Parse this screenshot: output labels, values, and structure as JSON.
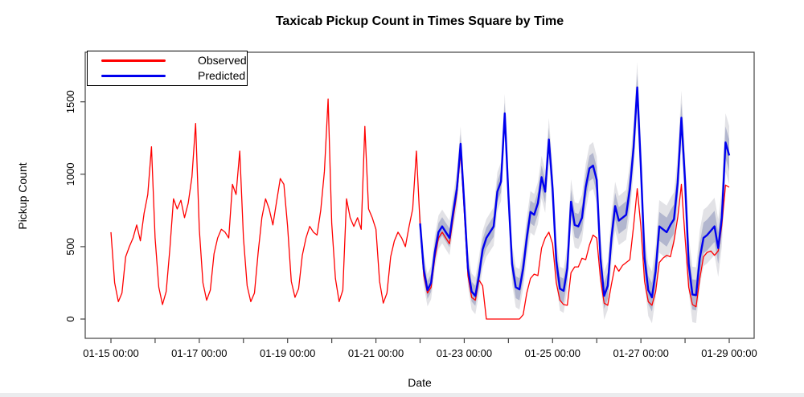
{
  "chart_data": {
    "type": "line",
    "title": "Taxicab Pickup Count in Times Square by Time",
    "xlabel": "Date",
    "ylabel": "Pickup Count",
    "x_start": "01-15 00:00",
    "x_end": "01-29 00:00",
    "step_hours": 2,
    "forecast_start": "01-22 00:00",
    "x_ticklabels": [
      "01-15 00:00",
      "01-17 00:00",
      "01-19 00:00",
      "01-21 00:00",
      "01-23 00:00",
      "01-25 00:00",
      "01-27 00:00",
      "01-29 00:00"
    ],
    "x_minor_tick_every_days": 1,
    "y_ticks": [
      0,
      500,
      1000,
      1500
    ],
    "ylim_displayed": [
      -130,
      1840
    ],
    "grid": false,
    "legend_position": "top-left",
    "series": [
      {
        "name": "Observed",
        "color": "#ff0000",
        "start_day_offset": 0,
        "values": [
          600,
          250,
          120,
          180,
          430,
          500,
          560,
          650,
          540,
          730,
          860,
          1190,
          560,
          220,
          100,
          190,
          480,
          830,
          760,
          820,
          700,
          800,
          980,
          1350,
          620,
          250,
          130,
          200,
          450,
          560,
          620,
          600,
          560,
          930,
          860,
          1160,
          560,
          230,
          120,
          180,
          460,
          700,
          830,
          760,
          650,
          810,
          970,
          930,
          640,
          260,
          150,
          210,
          440,
          560,
          640,
          600,
          580,
          750,
          1020,
          1520,
          660,
          280,
          120,
          200,
          830,
          700,
          640,
          700,
          620,
          1330,
          760,
          700,
          620,
          260,
          110,
          180,
          430,
          540,
          600,
          560,
          500,
          640,
          760,
          1160,
          650,
          300,
          180,
          220,
          420,
          560,
          600,
          560,
          520,
          700,
          870,
          1150,
          750,
          300,
          150,
          130,
          270,
          230,
          0,
          0,
          0,
          0,
          0,
          0,
          0,
          0,
          0,
          0,
          30,
          180,
          280,
          310,
          300,
          490,
          560,
          600,
          520,
          250,
          130,
          100,
          95,
          320,
          360,
          360,
          420,
          410,
          510,
          580,
          560,
          280,
          110,
          95,
          240,
          370,
          330,
          370,
          390,
          410,
          640,
          900,
          640,
          260,
          120,
          95,
          190,
          390,
          420,
          440,
          430,
          540,
          700,
          930,
          560,
          220,
          100,
          85,
          280,
          430,
          460,
          470,
          440,
          470,
          650,
          925,
          910
        ]
      },
      {
        "name": "Predicted",
        "color": "#0000ee",
        "start_day_offset": 7,
        "values": [
          660,
          340,
          200,
          250,
          460,
          600,
          640,
          600,
          560,
          740,
          900,
          1210,
          800,
          350,
          190,
          160,
          300,
          480,
          560,
          600,
          640,
          880,
          950,
          1420,
          850,
          380,
          220,
          205,
          350,
          560,
          740,
          720,
          800,
          980,
          880,
          1240,
          900,
          400,
          210,
          195,
          350,
          810,
          650,
          640,
          700,
          910,
          1040,
          1060,
          960,
          420,
          160,
          230,
          560,
          780,
          680,
          700,
          720,
          900,
          1180,
          1600,
          1050,
          420,
          200,
          150,
          330,
          640,
          620,
          600,
          650,
          690,
          940,
          1390,
          950,
          380,
          170,
          165,
          420,
          560,
          580,
          610,
          640,
          490,
          700,
          1220,
          1130
        ]
      }
    ],
    "prediction_intervals": {
      "ci80": {
        "halfwidth_base": 60,
        "halfwidth_growth_per_step": 0.6,
        "color": "rgba(90,100,160,0.35)"
      },
      "ci95": {
        "halfwidth_base": 110,
        "halfwidth_growth_per_step": 1.1,
        "color": "rgba(125,125,140,0.22)"
      }
    }
  },
  "legend": {
    "observed_label": "Observed",
    "predicted_label": "Predicted",
    "observed_color": "#ff0000",
    "predicted_color": "#0000ee"
  },
  "labels": {
    "title": "Taxicab Pickup Count in Times Square by Time",
    "x_axis": "Date",
    "y_axis": "Pickup Count"
  }
}
